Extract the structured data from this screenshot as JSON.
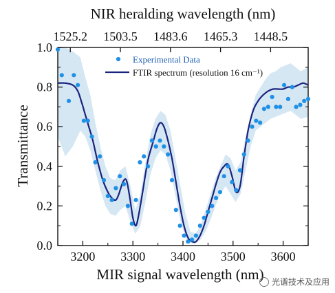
{
  "chart_data": {
    "type": "line",
    "xlabel": "MIR signal wavelength (nm)",
    "ylabel": "Transmittance",
    "top_xlabel": "NIR heralding wavelength (nm)",
    "xlim": [
      3150,
      3650
    ],
    "ylim": [
      0.0,
      1.0
    ],
    "x_ticks": [
      3200,
      3300,
      3400,
      3500,
      3600
    ],
    "x_tick_labels": [
      "3200",
      "3300",
      "3400",
      "3500",
      "3600"
    ],
    "y_ticks": [
      0.0,
      0.2,
      0.4,
      0.6,
      0.8,
      1.0
    ],
    "y_tick_labels": [
      "0.0",
      "0.2",
      "0.4",
      "0.6",
      "0.8",
      "1.0"
    ],
    "top_ticks_mir": [
      3175,
      3275,
      3375,
      3475,
      3575
    ],
    "top_tick_labels": [
      "1525.2",
      "1503.5",
      "1483.6",
      "1465.3",
      "1448.5"
    ],
    "legend": {
      "position": "top",
      "entries": [
        "Experimental Data",
        "FTIR spectrum (resolution 16 cm⁻¹)"
      ]
    },
    "colors": {
      "points": "#1e90e6",
      "line": "#1a237e",
      "band": "#d5e7f3"
    },
    "series": [
      {
        "name": "Experimental Data",
        "kind": "scatter",
        "x": [
          3150,
          3158,
          3172,
          3182,
          3190,
          3202,
          3210,
          3218,
          3225,
          3234,
          3242,
          3250,
          3258,
          3266,
          3274,
          3282,
          3290,
          3298,
          3306,
          3314,
          3322,
          3330,
          3338,
          3346,
          3354,
          3362,
          3370,
          3378,
          3386,
          3394,
          3402,
          3410,
          3418,
          3426,
          3434,
          3442,
          3450,
          3458,
          3466,
          3474,
          3482,
          3490,
          3498,
          3506,
          3514,
          3522,
          3530,
          3538,
          3546,
          3554,
          3562,
          3570,
          3578,
          3586,
          3594,
          3602,
          3610,
          3618,
          3626,
          3634,
          3642,
          3650
        ],
        "y": [
          0.99,
          0.86,
          0.73,
          0.86,
          0.81,
          0.63,
          0.63,
          0.55,
          0.42,
          0.45,
          0.33,
          0.25,
          0.23,
          0.29,
          0.35,
          0.31,
          0.2,
          0.11,
          0.23,
          0.42,
          0.45,
          0.4,
          0.53,
          0.5,
          0.53,
          0.5,
          0.46,
          0.33,
          0.18,
          0.1,
          0.05,
          0.02,
          0.03,
          0.05,
          0.1,
          0.14,
          0.17,
          0.2,
          0.24,
          0.27,
          0.35,
          0.4,
          0.32,
          0.28,
          0.38,
          0.46,
          0.53,
          0.6,
          0.63,
          0.62,
          0.69,
          0.7,
          0.75,
          0.7,
          0.7,
          0.81,
          0.74,
          0.8,
          0.7,
          0.71,
          0.73,
          0.74
        ]
      },
      {
        "name": "FTIR spectrum (resolution 16 cm⁻¹)",
        "kind": "line",
        "x": [
          3150,
          3165,
          3180,
          3190,
          3198,
          3205,
          3212,
          3220,
          3230,
          3240,
          3250,
          3258,
          3266,
          3272,
          3280,
          3287,
          3294,
          3300,
          3306,
          3312,
          3320,
          3330,
          3340,
          3348,
          3355,
          3362,
          3370,
          3378,
          3386,
          3394,
          3402,
          3410,
          3418,
          3426,
          3434,
          3442,
          3450,
          3458,
          3466,
          3474,
          3482,
          3490,
          3498,
          3506,
          3514,
          3522,
          3530,
          3540,
          3550,
          3560,
          3570,
          3580,
          3590,
          3600,
          3610,
          3620,
          3630,
          3640,
          3650
        ],
        "y": [
          0.82,
          0.82,
          0.81,
          0.78,
          0.72,
          0.66,
          0.6,
          0.53,
          0.42,
          0.33,
          0.27,
          0.24,
          0.23,
          0.26,
          0.32,
          0.33,
          0.24,
          0.14,
          0.1,
          0.16,
          0.28,
          0.43,
          0.52,
          0.59,
          0.62,
          0.6,
          0.53,
          0.44,
          0.32,
          0.2,
          0.1,
          0.04,
          0.02,
          0.02,
          0.05,
          0.1,
          0.17,
          0.24,
          0.31,
          0.37,
          0.4,
          0.41,
          0.35,
          0.27,
          0.3,
          0.45,
          0.58,
          0.68,
          0.73,
          0.76,
          0.78,
          0.79,
          0.79,
          0.79,
          0.8,
          0.8,
          0.81,
          0.82,
          0.81
        ]
      },
      {
        "name": "",
        "kind": "band",
        "x": [
          3150,
          3165,
          3180,
          3195,
          3205,
          3215,
          3225,
          3235,
          3245,
          3255,
          3265,
          3275,
          3285,
          3295,
          3305,
          3315,
          3325,
          3335,
          3345,
          3355,
          3365,
          3375,
          3385,
          3395,
          3405,
          3415,
          3425,
          3435,
          3445,
          3455,
          3465,
          3475,
          3485,
          3495,
          3505,
          3515,
          3525,
          3535,
          3545,
          3555,
          3565,
          3575,
          3585,
          3595,
          3605,
          3615,
          3625,
          3635,
          3650
        ],
        "lower": [
          0.55,
          0.45,
          0.5,
          0.58,
          0.55,
          0.48,
          0.38,
          0.28,
          0.2,
          0.16,
          0.15,
          0.18,
          0.2,
          0.12,
          0.06,
          0.1,
          0.22,
          0.36,
          0.44,
          0.48,
          0.46,
          0.38,
          0.25,
          0.12,
          0.04,
          0.01,
          0.01,
          0.03,
          0.07,
          0.13,
          0.2,
          0.26,
          0.3,
          0.26,
          0.22,
          0.26,
          0.38,
          0.5,
          0.58,
          0.6,
          0.62,
          0.64,
          0.65,
          0.66,
          0.67,
          0.68,
          0.66,
          0.64,
          0.65
        ],
        "upper": [
          1.0,
          1.0,
          0.98,
          0.95,
          0.85,
          0.76,
          0.62,
          0.5,
          0.4,
          0.34,
          0.33,
          0.38,
          0.4,
          0.3,
          0.18,
          0.26,
          0.42,
          0.56,
          0.64,
          0.68,
          0.66,
          0.58,
          0.44,
          0.3,
          0.16,
          0.07,
          0.06,
          0.1,
          0.18,
          0.26,
          0.34,
          0.4,
          0.46,
          0.44,
          0.38,
          0.42,
          0.55,
          0.66,
          0.76,
          0.8,
          0.84,
          0.87,
          0.88,
          0.9,
          0.91,
          0.92,
          0.9,
          0.88,
          0.9
        ]
      }
    ]
  },
  "watermark": {
    "text": "光谱技术及应用"
  }
}
